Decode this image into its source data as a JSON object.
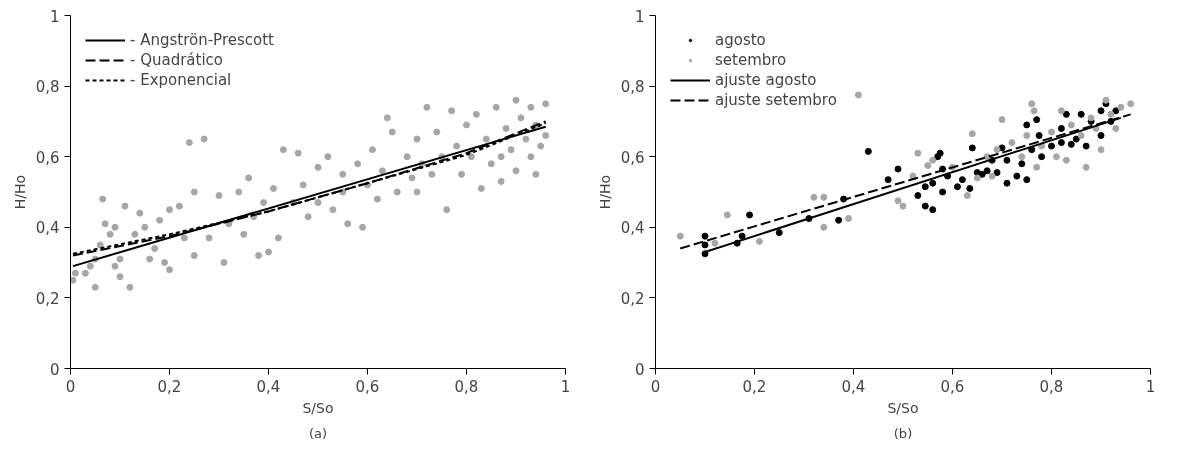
{
  "chart_data": [
    {
      "type": "scatter",
      "xlabel": "S/So",
      "ylabel": "H/Ho",
      "annotations": [
        "(a)"
      ],
      "xlim": [
        0,
        1
      ],
      "ylim": [
        0,
        1
      ],
      "xticks": [
        {
          "value": 0,
          "label": "0"
        },
        {
          "value": 0.2,
          "label": "0,2"
        },
        {
          "value": 0.4,
          "label": "0,4"
        },
        {
          "value": 0.6,
          "label": "0,6"
        },
        {
          "value": 0.8,
          "label": "0,8"
        },
        {
          "value": 1,
          "label": "1"
        }
      ],
      "yticks": [
        {
          "value": 0,
          "label": "0"
        },
        {
          "value": 0.2,
          "label": "0,2"
        },
        {
          "value": 0.4,
          "label": "0,4"
        },
        {
          "value": 0.6,
          "label": "0,6"
        },
        {
          "value": 0.8,
          "label": "0,8"
        },
        {
          "value": 1,
          "label": "1"
        }
      ],
      "grid": false,
      "legend": "top left",
      "series": [
        {
          "type": "scatter",
          "color": "#a6a6a6",
          "marker": "circle",
          "x": [
            0.005,
            0.01,
            0.03,
            0.04,
            0.05,
            0.05,
            0.06,
            0.065,
            0.07,
            0.08,
            0.09,
            0.09,
            0.1,
            0.1,
            0.11,
            0.12,
            0.13,
            0.14,
            0.15,
            0.16,
            0.17,
            0.18,
            0.19,
            0.2,
            0.2,
            0.22,
            0.23,
            0.24,
            0.25,
            0.25,
            0.27,
            0.28,
            0.3,
            0.31,
            0.32,
            0.34,
            0.35,
            0.36,
            0.37,
            0.38,
            0.39,
            0.4,
            0.41,
            0.42,
            0.43,
            0.46,
            0.47,
            0.48,
            0.5,
            0.5,
            0.52,
            0.53,
            0.55,
            0.56,
            0.58,
            0.59,
            0.6,
            0.61,
            0.62,
            0.63,
            0.64,
            0.65,
            0.66,
            0.68,
            0.69,
            0.7,
            0.71,
            0.72,
            0.73,
            0.74,
            0.75,
            0.76,
            0.77,
            0.78,
            0.79,
            0.8,
            0.81,
            0.82,
            0.83,
            0.84,
            0.85,
            0.86,
            0.87,
            0.88,
            0.89,
            0.9,
            0.9,
            0.91,
            0.92,
            0.93,
            0.93,
            0.94,
            0.95,
            0.96,
            0.96,
            0.94,
            0.87,
            0.7,
            0.55,
            0.45
          ],
          "values": [
            0.25,
            0.27,
            0.27,
            0.29,
            0.23,
            0.31,
            0.35,
            0.48,
            0.41,
            0.38,
            0.4,
            0.29,
            0.26,
            0.31,
            0.46,
            0.23,
            0.38,
            0.44,
            0.4,
            0.31,
            0.34,
            0.42,
            0.3,
            0.45,
            0.28,
            0.46,
            0.37,
            0.64,
            0.5,
            0.32,
            0.65,
            0.37,
            0.49,
            0.3,
            0.41,
            0.5,
            0.38,
            0.54,
            0.43,
            0.32,
            0.47,
            0.33,
            0.51,
            0.37,
            0.62,
            0.61,
            0.52,
            0.43,
            0.57,
            0.47,
            0.6,
            0.45,
            0.55,
            0.41,
            0.58,
            0.4,
            0.52,
            0.62,
            0.48,
            0.56,
            0.71,
            0.67,
            0.5,
            0.6,
            0.54,
            0.65,
            0.58,
            0.74,
            0.55,
            0.67,
            0.6,
            0.45,
            0.73,
            0.63,
            0.55,
            0.69,
            0.6,
            0.72,
            0.51,
            0.65,
            0.58,
            0.74,
            0.53,
            0.68,
            0.62,
            0.76,
            0.56,
            0.71,
            0.65,
            0.74,
            0.6,
            0.69,
            0.63,
            0.75,
            0.66,
            0.55,
            0.6,
            0.5,
            0.5,
            0.47
          ]
        },
        {
          "type": "line",
          "name": "- Angströn-Prescott",
          "color": "#000000",
          "line_style": "solid",
          "x": [
            0.005,
            0.96
          ],
          "values": [
            0.29,
            0.685
          ]
        },
        {
          "type": "line",
          "name": "- Quadrático",
          "color": "#000000",
          "line_style": "dashed",
          "x": [
            0.005,
            0.2,
            0.4,
            0.6,
            0.8,
            0.96
          ],
          "values": [
            0.32,
            0.375,
            0.445,
            0.525,
            0.61,
            0.7
          ]
        },
        {
          "type": "line",
          "name": "- Exponencial",
          "color": "#000000",
          "line_style": "dotted",
          "x": [
            0.005,
            0.2,
            0.4,
            0.6,
            0.8,
            0.96
          ],
          "values": [
            0.325,
            0.38,
            0.445,
            0.525,
            0.605,
            0.695
          ]
        }
      ]
    },
    {
      "type": "scatter",
      "xlabel": "S/So",
      "ylabel": "H/Ho",
      "annotations": [
        "(b)"
      ],
      "xlim": [
        0,
        1
      ],
      "ylim": [
        0,
        1
      ],
      "xticks": [
        {
          "value": 0,
          "label": "0"
        },
        {
          "value": 0.2,
          "label": "0,2"
        },
        {
          "value": 0.4,
          "label": "0,4"
        },
        {
          "value": 0.6,
          "label": "0,6"
        },
        {
          "value": 0.8,
          "label": "0,8"
        },
        {
          "value": 1,
          "label": "1"
        }
      ],
      "yticks": [
        {
          "value": 0,
          "label": "0"
        },
        {
          "value": 0.2,
          "label": "0,2"
        },
        {
          "value": 0.4,
          "label": "0,4"
        },
        {
          "value": 0.6,
          "label": "0,6"
        },
        {
          "value": 0.8,
          "label": "0,8"
        },
        {
          "value": 1,
          "label": "1"
        }
      ],
      "grid": false,
      "legend": "top left",
      "series": [
        {
          "type": "scatter",
          "name": "agosto",
          "color": "#000000",
          "marker": "circle",
          "x": [
            0.1,
            0.1,
            0.1,
            0.165,
            0.175,
            0.19,
            0.25,
            0.31,
            0.37,
            0.38,
            0.43,
            0.47,
            0.49,
            0.53,
            0.545,
            0.545,
            0.56,
            0.56,
            0.57,
            0.575,
            0.58,
            0.58,
            0.59,
            0.61,
            0.62,
            0.635,
            0.64,
            0.65,
            0.66,
            0.67,
            0.68,
            0.69,
            0.7,
            0.71,
            0.71,
            0.73,
            0.74,
            0.75,
            0.75,
            0.76,
            0.77,
            0.775,
            0.78,
            0.8,
            0.82,
            0.82,
            0.83,
            0.84,
            0.85,
            0.86,
            0.87,
            0.88,
            0.9,
            0.9,
            0.91,
            0.92,
            0.93
          ],
          "values": [
            0.325,
            0.35,
            0.375,
            0.355,
            0.375,
            0.435,
            0.385,
            0.425,
            0.42,
            0.48,
            0.615,
            0.535,
            0.565,
            0.49,
            0.46,
            0.515,
            0.45,
            0.525,
            0.6,
            0.61,
            0.5,
            0.565,
            0.545,
            0.515,
            0.535,
            0.51,
            0.625,
            0.555,
            0.55,
            0.56,
            0.59,
            0.555,
            0.625,
            0.59,
            0.525,
            0.545,
            0.58,
            0.535,
            0.69,
            0.62,
            0.705,
            0.66,
            0.6,
            0.63,
            0.68,
            0.64,
            0.72,
            0.635,
            0.65,
            0.72,
            0.63,
            0.7,
            0.73,
            0.66,
            0.75,
            0.7,
            0.73
          ]
        },
        {
          "type": "scatter",
          "name": "setembro",
          "color": "#a6a6a6",
          "marker": "circle",
          "x": [
            0.05,
            0.12,
            0.145,
            0.21,
            0.32,
            0.34,
            0.34,
            0.39,
            0.41,
            0.49,
            0.5,
            0.52,
            0.53,
            0.55,
            0.56,
            0.6,
            0.63,
            0.64,
            0.65,
            0.67,
            0.68,
            0.69,
            0.7,
            0.72,
            0.74,
            0.75,
            0.76,
            0.765,
            0.77,
            0.78,
            0.8,
            0.81,
            0.82,
            0.83,
            0.84,
            0.86,
            0.87,
            0.88,
            0.89,
            0.9,
            0.91,
            0.92,
            0.93,
            0.94,
            0.96
          ],
          "values": [
            0.375,
            0.355,
            0.435,
            0.36,
            0.485,
            0.485,
            0.4,
            0.425,
            0.775,
            0.475,
            0.46,
            0.545,
            0.61,
            0.575,
            0.59,
            0.57,
            0.49,
            0.665,
            0.54,
            0.6,
            0.545,
            0.62,
            0.705,
            0.64,
            0.6,
            0.66,
            0.75,
            0.73,
            0.57,
            0.63,
            0.67,
            0.6,
            0.73,
            0.59,
            0.69,
            0.66,
            0.57,
            0.71,
            0.68,
            0.62,
            0.76,
            0.72,
            0.68,
            0.74,
            0.75
          ]
        },
        {
          "type": "line",
          "name": "ajuste agosto",
          "color": "#000000",
          "line_style": "solid",
          "x": [
            0.1,
            0.94
          ],
          "values": [
            0.33,
            0.71
          ]
        },
        {
          "type": "line",
          "name": "ajuste setembro",
          "color": "#000000",
          "line_style": "dashed",
          "x": [
            0.05,
            0.96
          ],
          "values": [
            0.34,
            0.72
          ]
        }
      ]
    }
  ]
}
